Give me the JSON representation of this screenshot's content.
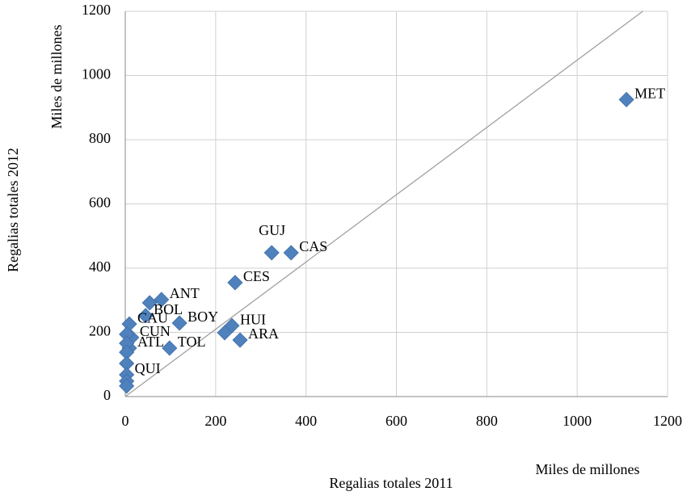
{
  "chart_data": {
    "type": "scatter",
    "x_unit_label": "Miles de millones",
    "y_unit_label": "Miles de millones",
    "x_label": "Regalias totales 2011",
    "y_label": "Regalias totales 2012",
    "xlim": [
      0,
      1200
    ],
    "xticks": [
      0,
      200,
      400,
      600,
      800,
      1000,
      1200
    ],
    "ylim": [
      0,
      1200
    ],
    "yticks": [
      0,
      200,
      400,
      600,
      800,
      1000,
      1200
    ],
    "grid": true,
    "color": "#4f81bd",
    "categories": [
      "MET",
      "GUJ",
      "CAS",
      "CES",
      "ANT",
      null,
      "BOL",
      "BOY",
      "HUI",
      null,
      "ARA",
      "TOL",
      "CAU",
      "CUN",
      "ATL",
      null,
      null,
      null,
      null,
      "QUI",
      null,
      null
    ],
    "x": [
      1109,
      324,
      367,
      243,
      80,
      54,
      45,
      120,
      236,
      220,
      254,
      98,
      9,
      14,
      9,
      3,
      3,
      3,
      3,
      3,
      3,
      3
    ],
    "values": [
      925,
      448,
      448,
      355,
      302,
      292,
      252,
      229,
      221,
      199,
      176,
      151,
      226,
      184,
      151,
      194,
      166,
      138,
      103,
      68,
      48,
      33
    ],
    "reference_line": {
      "x": [
        0,
        1145
      ],
      "y": [
        0,
        1200
      ]
    }
  }
}
